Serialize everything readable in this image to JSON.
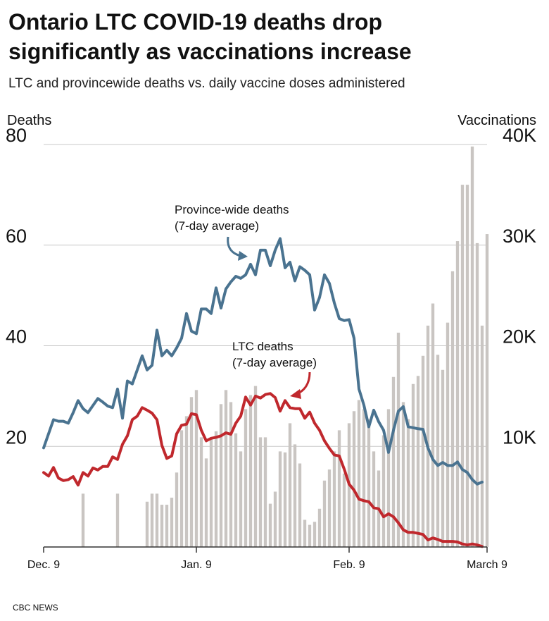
{
  "chart_data": {
    "type": "combo",
    "title": [
      "Ontario LTC COVID-19 deaths drop",
      "significantly as vaccinations increase"
    ],
    "subtitle": "LTC and provincewide deaths vs. daily vaccine doses administered",
    "y_label": "Deaths",
    "y2_label": "Vaccinations",
    "source": "CBC NEWS",
    "categories": [
      "Dec. 9",
      null,
      null,
      null,
      null,
      null,
      null,
      null,
      null,
      null,
      null,
      null,
      null,
      null,
      null,
      null,
      null,
      null,
      null,
      null,
      null,
      null,
      null,
      null,
      null,
      null,
      null,
      null,
      null,
      null,
      null,
      "Jan. 9",
      null,
      null,
      null,
      null,
      null,
      null,
      null,
      null,
      null,
      null,
      null,
      null,
      null,
      null,
      null,
      null,
      null,
      null,
      null,
      null,
      null,
      null,
      null,
      null,
      null,
      null,
      null,
      null,
      null,
      null,
      "Feb. 9",
      null,
      null,
      null,
      null,
      null,
      null,
      null,
      null,
      null,
      null,
      null,
      null,
      null,
      null,
      null,
      null,
      null,
      null,
      null,
      null,
      null,
      null,
      null,
      null,
      null,
      null,
      null,
      "March 9"
    ],
    "ylim": [
      0,
      80
    ],
    "yticks": [
      20,
      40,
      60,
      80
    ],
    "y2lim": [
      0,
      40000
    ],
    "y2ticks": [
      {
        "value": 10000,
        "label": "10K"
      },
      {
        "value": 20000,
        "label": "20K"
      },
      {
        "value": 30000,
        "label": "30K"
      },
      {
        "value": 40000,
        "label": "40K"
      }
    ],
    "grid": true,
    "series": [
      {
        "name": "Vaccinations",
        "type": "bar",
        "axis": "y2",
        "color": "#c9c5c2",
        "values": [
          null,
          null,
          null,
          null,
          null,
          null,
          null,
          null,
          5300,
          null,
          null,
          null,
          null,
          null,
          null,
          5300,
          null,
          null,
          null,
          null,
          null,
          4500,
          5300,
          5300,
          4200,
          4200,
          4900,
          7400,
          11600,
          13000,
          14900,
          15600,
          10900,
          8800,
          10700,
          11500,
          14200,
          15600,
          14400,
          11300,
          9500,
          13700,
          15100,
          16000,
          10900,
          10900,
          4300,
          5500,
          9500,
          9400,
          12300,
          10200,
          8300,
          2700,
          2200,
          2500,
          3800,
          6600,
          7700,
          9500,
          11600,
          7300,
          12300,
          13500,
          14600,
          13700,
          12700,
          9500,
          7600,
          11100,
          13700,
          16900,
          21300,
          14400,
          12700,
          16200,
          17000,
          19000,
          22000,
          24200,
          19100,
          17600,
          22300,
          27400,
          30400,
          36000,
          36000,
          39800,
          30200,
          22000,
          31100
        ]
      },
      {
        "name": "Province-wide deaths",
        "type": "line",
        "axis": "y",
        "color": "#4a7390",
        "values": [
          19.7,
          22.5,
          25.3,
          25,
          25,
          24.6,
          26.7,
          29.1,
          27.5,
          26.7,
          28.1,
          29.5,
          28.8,
          28,
          27.7,
          31.4,
          25.6,
          33,
          32.4,
          35.2,
          38,
          35.2,
          36.1,
          43.1,
          38,
          39.1,
          38,
          39.6,
          41.5,
          46.4,
          42.9,
          42.4,
          47.3,
          47.3,
          46.4,
          51.5,
          47.5,
          51.3,
          52.7,
          53.8,
          53.4,
          54.1,
          56.2,
          54.1,
          59,
          59,
          55.9,
          59,
          61.3,
          55.5,
          56.6,
          52.9,
          55.7,
          55,
          54.1,
          47.1,
          49.6,
          54.1,
          52.4,
          48.5,
          45.4,
          45,
          45.2,
          41.5,
          31.4,
          28.2,
          23.9,
          27.2,
          24.9,
          23.2,
          18.8,
          23.2,
          27,
          27.9,
          23.9,
          23.7,
          23.5,
          23.4,
          19.7,
          17.4,
          16.2,
          16.8,
          16.2,
          16.2,
          16.9,
          15.4,
          14.8,
          13.4,
          12.5,
          12.9,
          null
        ]
      },
      {
        "name": "LTC deaths",
        "type": "line",
        "axis": "y",
        "color": "#c0282d",
        "values": [
          14.8,
          14.1,
          15.8,
          13.7,
          13.2,
          13.4,
          14,
          12.3,
          14.8,
          14.1,
          15.7,
          15.3,
          16,
          16,
          17.9,
          17.4,
          20.4,
          22.1,
          25.3,
          26,
          27.7,
          27.2,
          26.6,
          25.3,
          20.2,
          17.6,
          18.1,
          22.5,
          24.2,
          24.4,
          26.5,
          26.3,
          23.2,
          21.1,
          21.6,
          21.8,
          22.1,
          22.7,
          22.4,
          24.6,
          26,
          29.8,
          28.2,
          30,
          29.6,
          30.3,
          30.5,
          29.7,
          27,
          29.1,
          27.7,
          27.5,
          27.5,
          25.6,
          26.8,
          24.6,
          23.2,
          21.1,
          19.6,
          18.3,
          18.1,
          15.5,
          12.5,
          11.3,
          9.5,
          9.2,
          9,
          7.8,
          7.6,
          6,
          6.6,
          6,
          4.8,
          3.4,
          2.9,
          2.9,
          2.7,
          2.5,
          1.4,
          1.8,
          1.5,
          1.1,
          1.1,
          1.1,
          1,
          0.6,
          0.4,
          0.6,
          0.4,
          0.1,
          null
        ]
      }
    ],
    "annotations": [
      "(7-day average)",
      "(7-day average)"
    ]
  }
}
